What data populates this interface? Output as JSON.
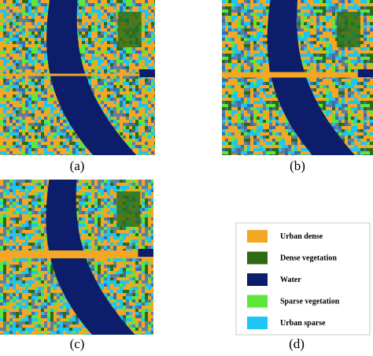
{
  "panels": [
    {
      "label": "(a)"
    },
    {
      "label": "(b)"
    },
    {
      "label": "(c)"
    },
    {
      "label": "(d)"
    }
  ],
  "legend": {
    "items": [
      {
        "label": "Urban dense",
        "color": "#f5a623"
      },
      {
        "label": "Dense vegetation",
        "color": "#2c6b12"
      },
      {
        "label": "Water",
        "color": "#0b1d6b"
      },
      {
        "label": "Sparse vegetation",
        "color": "#5ee63a"
      },
      {
        "label": "Urban sparse",
        "color": "#1ec4f2"
      }
    ]
  }
}
